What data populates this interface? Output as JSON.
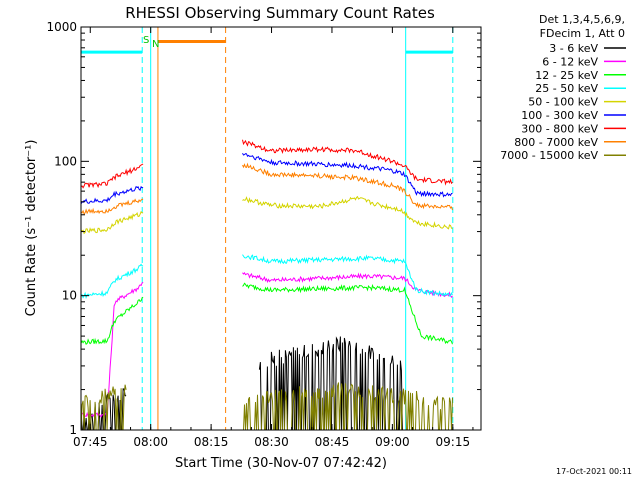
{
  "chart_data": {
    "type": "line",
    "title": "RHESSI Observing Summary Count Rates",
    "xlabel": "Start Time (30-Nov-07 07:42:42)",
    "ylabel": "Count Rate (s⁻¹ detector⁻¹)",
    "yscale": "log",
    "ylim": [
      1,
      1000
    ],
    "xlim": [
      "07:42:42",
      "09:22:00"
    ],
    "x_ticks": [
      "07:45",
      "08:00",
      "08:15",
      "08:30",
      "08:45",
      "09:00",
      "09:15"
    ],
    "y_ticks": [
      "1",
      "10",
      "100",
      "1000"
    ],
    "legend_header": [
      "Det 1,3,4,5,6,9,",
      "FDecim 1, Att 0"
    ],
    "legend_position": "right",
    "timestamp": "17-Oct-2021 00:11",
    "flags": [
      {
        "label": "S",
        "color": "#00c000"
      },
      {
        "label": "N",
        "color": "#00c000"
      }
    ],
    "series": [
      {
        "name": "3 - 6 keV",
        "color": "#000000",
        "segments": [
          [
            [
              7.712,
              1.3
            ],
            [
              7.9,
              2
            ]
          ],
          [
            [
              8.45,
              3.2
            ],
            [
              8.8,
              4.5
            ],
            [
              9.05,
              3
            ]
          ]
        ]
      },
      {
        "name": "6 - 12 keV",
        "color": "#ff00ff",
        "segments": [
          [
            [
              7.712,
              1.3
            ],
            [
              7.82,
              1.3
            ],
            [
              7.85,
              9
            ],
            [
              7.95,
              11.5
            ],
            [
              7.97,
              13
            ]
          ],
          [
            [
              8.38,
              14.5
            ],
            [
              8.5,
              13
            ],
            [
              8.9,
              14
            ],
            [
              9.05,
              13.5
            ],
            [
              9.1,
              11
            ],
            [
              9.25,
              10
            ]
          ]
        ]
      },
      {
        "name": "12 - 25 keV",
        "color": "#00ff00",
        "segments": [
          [
            [
              7.712,
              4.5
            ],
            [
              7.82,
              4.6
            ],
            [
              7.85,
              6.5
            ],
            [
              7.95,
              9
            ],
            [
              7.97,
              10
            ]
          ],
          [
            [
              8.38,
              12
            ],
            [
              8.5,
              11
            ],
            [
              8.9,
              11.5
            ],
            [
              9.05,
              11
            ],
            [
              9.12,
              5
            ],
            [
              9.25,
              4.5
            ]
          ]
        ]
      },
      {
        "name": "25 - 50 keV",
        "color": "#00ffff",
        "segments": [
          [
            [
              7.712,
              10
            ],
            [
              7.82,
              10.5
            ],
            [
              7.85,
              13
            ],
            [
              7.95,
              16
            ],
            [
              7.97,
              17
            ]
          ],
          [
            [
              8.38,
              20
            ],
            [
              8.5,
              18
            ],
            [
              8.9,
              19
            ],
            [
              9.05,
              18
            ],
            [
              9.1,
              11
            ],
            [
              9.25,
              10
            ]
          ]
        ]
      },
      {
        "name": "50 - 100 keV",
        "color": "#d4d400",
        "segments": [
          [
            [
              7.712,
              30
            ],
            [
              7.82,
              31
            ],
            [
              7.85,
              35
            ],
            [
              7.95,
              40
            ],
            [
              7.97,
              42
            ]
          ],
          [
            [
              8.38,
              53
            ],
            [
              8.5,
              47
            ],
            [
              8.7,
              46
            ],
            [
              8.85,
              53
            ],
            [
              8.95,
              47
            ],
            [
              9.03,
              44
            ],
            [
              9.1,
              35
            ],
            [
              9.25,
              32
            ]
          ]
        ]
      },
      {
        "name": "100 - 300 keV",
        "color": "#0000ff",
        "segments": [
          [
            [
              7.712,
              50
            ],
            [
              7.82,
              51
            ],
            [
              7.85,
              57
            ],
            [
              7.95,
              63
            ],
            [
              7.97,
              64
            ]
          ],
          [
            [
              8.38,
              115
            ],
            [
              8.5,
              98
            ],
            [
              8.7,
              95
            ],
            [
              8.85,
              93
            ],
            [
              9.0,
              85
            ],
            [
              9.05,
              80
            ],
            [
              9.1,
              58
            ],
            [
              9.25,
              56
            ]
          ]
        ]
      },
      {
        "name": "300 - 800 keV",
        "color": "#ff0000",
        "segments": [
          [
            [
              7.712,
              66
            ],
            [
              7.82,
              68
            ],
            [
              7.85,
              76
            ],
            [
              7.95,
              90
            ],
            [
              7.97,
              96
            ]
          ],
          [
            [
              8.38,
              140
            ],
            [
              8.5,
              120
            ],
            [
              8.7,
              123
            ],
            [
              8.85,
              120
            ],
            [
              9.0,
              100
            ],
            [
              9.05,
              92
            ],
            [
              9.1,
              73
            ],
            [
              9.25,
              70
            ]
          ]
        ]
      },
      {
        "name": "800 - 7000 keV",
        "color": "#ff8000",
        "segments": [
          [
            [
              7.712,
              42
            ],
            [
              7.82,
              43
            ],
            [
              7.85,
              46
            ],
            [
              7.95,
              51
            ],
            [
              7.97,
              52
            ]
          ],
          [
            [
              8.38,
              95
            ],
            [
              8.5,
              80
            ],
            [
              8.7,
              78
            ],
            [
              8.85,
              75
            ],
            [
              9.0,
              66
            ],
            [
              9.05,
              60
            ],
            [
              9.1,
              47
            ],
            [
              9.25,
              45
            ]
          ]
        ]
      },
      {
        "name": "7000 - 15000 keV",
        "color": "#808000",
        "segments": [
          [
            [
              7.712,
              1.6
            ],
            [
              7.9,
              2
            ]
          ],
          [
            [
              8.38,
              1.7
            ],
            [
              8.8,
              2
            ],
            [
              9.25,
              1.6
            ]
          ]
        ]
      }
    ],
    "bars": [
      {
        "name": "attenuator-in",
        "color": "#00ffff",
        "y": 650,
        "from": 7.712,
        "to": 7.965
      },
      {
        "name": "attenuator-in",
        "color": "#00ffff",
        "y": 650,
        "from": 9.055,
        "to": 9.25
      },
      {
        "name": "SAA",
        "color": "#ff8000",
        "y": 780,
        "from": 8.03,
        "to": 8.31
      }
    ],
    "vlines": [
      {
        "x": 7.965,
        "color": "#00ffff",
        "style": "dashed"
      },
      {
        "x": 8.0,
        "color": "#00ffff",
        "style": "solid"
      },
      {
        "x": 8.03,
        "color": "#ff8000",
        "style": "solid"
      },
      {
        "x": 8.31,
        "color": "#ff8000",
        "style": "dashed"
      },
      {
        "x": 9.055,
        "color": "#00ffff",
        "style": "solid"
      },
      {
        "x": 9.25,
        "color": "#00ffff",
        "style": "dashed"
      }
    ]
  }
}
